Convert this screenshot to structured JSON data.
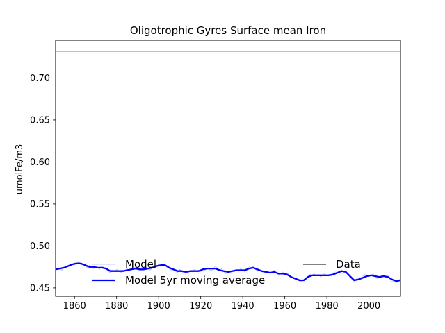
{
  "chart_data": {
    "type": "line",
    "title": "Oligotrophic Gyres Surface mean Iron",
    "xlabel": "",
    "ylabel": "umolFe/m3",
    "xlim": [
      1851,
      2015
    ],
    "ylim": [
      0.44,
      0.745
    ],
    "x_ticks": [
      1860,
      1880,
      1900,
      1920,
      1940,
      1960,
      1980,
      2000
    ],
    "y_ticks": [
      0.45,
      0.5,
      0.55,
      0.6,
      0.65,
      0.7
    ],
    "x_tick_labels": [
      "1860",
      "1880",
      "1900",
      "1920",
      "1940",
      "1960",
      "1980",
      "2000"
    ],
    "y_tick_labels": [
      "0.45",
      "0.50",
      "0.55",
      "0.60",
      "0.65",
      "0.70"
    ],
    "grid": false,
    "legend": [
      {
        "label": "Model",
        "color": "#b0b0ff",
        "placement": "bottom-center"
      },
      {
        "label": "Model 5yr moving average",
        "color": "#0000ff",
        "placement": "bottom-center"
      },
      {
        "label": "Data",
        "color": "#000000",
        "placement": "bottom-right"
      }
    ],
    "series": [
      {
        "name": "Model",
        "color": "#b0b0ff",
        "points": [
          [
            1851,
            0.473
          ],
          [
            1852,
            0.472
          ],
          [
            1853,
            0.473
          ],
          [
            1854,
            0.471
          ],
          [
            1855,
            0.474
          ],
          [
            1856,
            0.476
          ],
          [
            1857,
            0.475
          ],
          [
            1858,
            0.478
          ],
          [
            1859,
            0.477
          ],
          [
            1860,
            0.48
          ],
          [
            1861,
            0.478
          ],
          [
            1862,
            0.482
          ],
          [
            1863,
            0.477
          ],
          [
            1864,
            0.479
          ],
          [
            1865,
            0.476
          ],
          [
            1866,
            0.474
          ],
          [
            1867,
            0.477
          ],
          [
            1868,
            0.475
          ],
          [
            1869,
            0.473
          ],
          [
            1870,
            0.476
          ],
          [
            1871,
            0.474
          ],
          [
            1872,
            0.472
          ],
          [
            1873,
            0.476
          ],
          [
            1874,
            0.474
          ],
          [
            1875,
            0.472
          ],
          [
            1876,
            0.47
          ],
          [
            1877,
            0.468
          ],
          [
            1878,
            0.471
          ],
          [
            1879,
            0.469
          ],
          [
            1880,
            0.472
          ],
          [
            1881,
            0.47
          ],
          [
            1882,
            0.468
          ],
          [
            1883,
            0.471
          ],
          [
            1884,
            0.47
          ],
          [
            1885,
            0.473
          ],
          [
            1886,
            0.471
          ],
          [
            1887,
            0.474
          ],
          [
            1888,
            0.472
          ],
          [
            1889,
            0.475
          ],
          [
            1890,
            0.473
          ],
          [
            1891,
            0.47
          ],
          [
            1892,
            0.474
          ],
          [
            1893,
            0.472
          ],
          [
            1894,
            0.475
          ],
          [
            1895,
            0.473
          ],
          [
            1896,
            0.471
          ],
          [
            1897,
            0.474
          ],
          [
            1898,
            0.476
          ],
          [
            1899,
            0.475
          ],
          [
            1900,
            0.478
          ],
          [
            1901,
            0.476
          ],
          [
            1902,
            0.479
          ],
          [
            1903,
            0.477
          ],
          [
            1904,
            0.475
          ],
          [
            1905,
            0.473
          ],
          [
            1906,
            0.471
          ],
          [
            1907,
            0.473
          ],
          [
            1908,
            0.47
          ],
          [
            1909,
            0.468
          ],
          [
            1910,
            0.472
          ],
          [
            1911,
            0.47
          ],
          [
            1912,
            0.467
          ],
          [
            1913,
            0.47
          ],
          [
            1914,
            0.468
          ],
          [
            1915,
            0.471
          ],
          [
            1916,
            0.469
          ],
          [
            1917,
            0.472
          ],
          [
            1918,
            0.47
          ],
          [
            1919,
            0.471
          ],
          [
            1920,
            0.469
          ],
          [
            1921,
            0.473
          ],
          [
            1922,
            0.471
          ],
          [
            1923,
            0.474
          ],
          [
            1924,
            0.472
          ],
          [
            1925,
            0.47
          ],
          [
            1926,
            0.473
          ],
          [
            1927,
            0.476
          ],
          [
            1928,
            0.472
          ],
          [
            1929,
            0.47
          ],
          [
            1930,
            0.473
          ],
          [
            1931,
            0.469
          ],
          [
            1932,
            0.467
          ],
          [
            1933,
            0.47
          ],
          [
            1934,
            0.468
          ],
          [
            1935,
            0.471
          ],
          [
            1936,
            0.469
          ],
          [
            1937,
            0.472
          ],
          [
            1938,
            0.47
          ],
          [
            1939,
            0.473
          ],
          [
            1940,
            0.471
          ],
          [
            1941,
            0.469
          ],
          [
            1942,
            0.472
          ],
          [
            1943,
            0.475
          ],
          [
            1944,
            0.474
          ],
          [
            1945,
            0.476
          ],
          [
            1946,
            0.472
          ],
          [
            1947,
            0.47
          ],
          [
            1948,
            0.472
          ],
          [
            1949,
            0.469
          ],
          [
            1950,
            0.471
          ],
          [
            1951,
            0.468
          ],
          [
            1952,
            0.47
          ],
          [
            1953,
            0.467
          ],
          [
            1954,
            0.469
          ],
          [
            1955,
            0.471
          ],
          [
            1956,
            0.468
          ],
          [
            1957,
            0.465
          ],
          [
            1958,
            0.467
          ],
          [
            1959,
            0.469
          ],
          [
            1960,
            0.466
          ],
          [
            1961,
            0.468
          ],
          [
            1962,
            0.466
          ],
          [
            1963,
            0.463
          ],
          [
            1964,
            0.462
          ],
          [
            1965,
            0.46
          ],
          [
            1966,
            0.461
          ],
          [
            1967,
            0.459
          ],
          [
            1968,
            0.457
          ],
          [
            1969,
            0.46
          ],
          [
            1970,
            0.462
          ],
          [
            1971,
            0.464
          ],
          [
            1972,
            0.466
          ],
          [
            1973,
            0.465
          ],
          [
            1974,
            0.467
          ],
          [
            1975,
            0.464
          ],
          [
            1976,
            0.466
          ],
          [
            1977,
            0.463
          ],
          [
            1978,
            0.465
          ],
          [
            1979,
            0.467
          ],
          [
            1980,
            0.464
          ],
          [
            1981,
            0.466
          ],
          [
            1982,
            0.464
          ],
          [
            1983,
            0.467
          ],
          [
            1984,
            0.469
          ],
          [
            1985,
            0.468
          ],
          [
            1986,
            0.47
          ],
          [
            1987,
            0.471
          ],
          [
            1988,
            0.469
          ],
          [
            1989,
            0.471
          ],
          [
            1990,
            0.466
          ],
          [
            1991,
            0.462
          ],
          [
            1992,
            0.46
          ],
          [
            1993,
            0.458
          ],
          [
            1994,
            0.461
          ],
          [
            1995,
            0.459
          ],
          [
            1996,
            0.462
          ],
          [
            1997,
            0.464
          ],
          [
            1998,
            0.466
          ],
          [
            1999,
            0.465
          ],
          [
            2000,
            0.463
          ],
          [
            2001,
            0.465
          ],
          [
            2002,
            0.467
          ],
          [
            2003,
            0.463
          ],
          [
            2004,
            0.461
          ],
          [
            2005,
            0.463
          ],
          [
            2006,
            0.465
          ],
          [
            2007,
            0.464
          ],
          [
            2008,
            0.462
          ],
          [
            2009,
            0.465
          ],
          [
            2010,
            0.46
          ],
          [
            2011,
            0.457
          ],
          [
            2012,
            0.459
          ],
          [
            2013,
            0.456
          ],
          [
            2014,
            0.459
          ],
          [
            2015,
            0.461
          ]
        ]
      },
      {
        "name": "Model 5yr moving average",
        "color": "#0000ff",
        "points": [
          [
            1851,
            0.472
          ],
          [
            1853,
            0.473
          ],
          [
            1855,
            0.474
          ],
          [
            1857,
            0.476
          ],
          [
            1859,
            0.478
          ],
          [
            1861,
            0.479
          ],
          [
            1863,
            0.479
          ],
          [
            1865,
            0.477
          ],
          [
            1867,
            0.475
          ],
          [
            1869,
            0.475
          ],
          [
            1871,
            0.474
          ],
          [
            1873,
            0.474
          ],
          [
            1875,
            0.473
          ],
          [
            1877,
            0.47
          ],
          [
            1879,
            0.47
          ],
          [
            1881,
            0.47
          ],
          [
            1883,
            0.47
          ],
          [
            1885,
            0.471
          ],
          [
            1887,
            0.472
          ],
          [
            1889,
            0.473
          ],
          [
            1891,
            0.472
          ],
          [
            1893,
            0.472
          ],
          [
            1895,
            0.473
          ],
          [
            1897,
            0.474
          ],
          [
            1899,
            0.476
          ],
          [
            1901,
            0.477
          ],
          [
            1903,
            0.477
          ],
          [
            1905,
            0.474
          ],
          [
            1907,
            0.472
          ],
          [
            1909,
            0.47
          ],
          [
            1911,
            0.47
          ],
          [
            1913,
            0.469
          ],
          [
            1915,
            0.47
          ],
          [
            1917,
            0.47
          ],
          [
            1919,
            0.47
          ],
          [
            1921,
            0.472
          ],
          [
            1923,
            0.473
          ],
          [
            1925,
            0.473
          ],
          [
            1927,
            0.473
          ],
          [
            1929,
            0.471
          ],
          [
            1931,
            0.47
          ],
          [
            1933,
            0.469
          ],
          [
            1935,
            0.47
          ],
          [
            1937,
            0.471
          ],
          [
            1939,
            0.471
          ],
          [
            1941,
            0.471
          ],
          [
            1943,
            0.473
          ],
          [
            1945,
            0.474
          ],
          [
            1947,
            0.472
          ],
          [
            1949,
            0.47
          ],
          [
            1951,
            0.469
          ],
          [
            1953,
            0.468
          ],
          [
            1955,
            0.469
          ],
          [
            1957,
            0.467
          ],
          [
            1959,
            0.467
          ],
          [
            1961,
            0.466
          ],
          [
            1963,
            0.463
          ],
          [
            1965,
            0.461
          ],
          [
            1967,
            0.459
          ],
          [
            1969,
            0.459
          ],
          [
            1971,
            0.463
          ],
          [
            1973,
            0.465
          ],
          [
            1975,
            0.465
          ],
          [
            1977,
            0.465
          ],
          [
            1979,
            0.465
          ],
          [
            1981,
            0.465
          ],
          [
            1983,
            0.466
          ],
          [
            1985,
            0.468
          ],
          [
            1987,
            0.47
          ],
          [
            1989,
            0.469
          ],
          [
            1991,
            0.464
          ],
          [
            1993,
            0.459
          ],
          [
            1995,
            0.46
          ],
          [
            1997,
            0.462
          ],
          [
            1999,
            0.464
          ],
          [
            2001,
            0.465
          ],
          [
            2003,
            0.464
          ],
          [
            2005,
            0.463
          ],
          [
            2007,
            0.464
          ],
          [
            2009,
            0.463
          ],
          [
            2011,
            0.46
          ],
          [
            2013,
            0.458
          ],
          [
            2015,
            0.459
          ]
        ]
      },
      {
        "name": "Data",
        "color": "#000000",
        "points": [
          [
            1851,
            0.732
          ],
          [
            2015,
            0.732
          ]
        ]
      }
    ]
  }
}
